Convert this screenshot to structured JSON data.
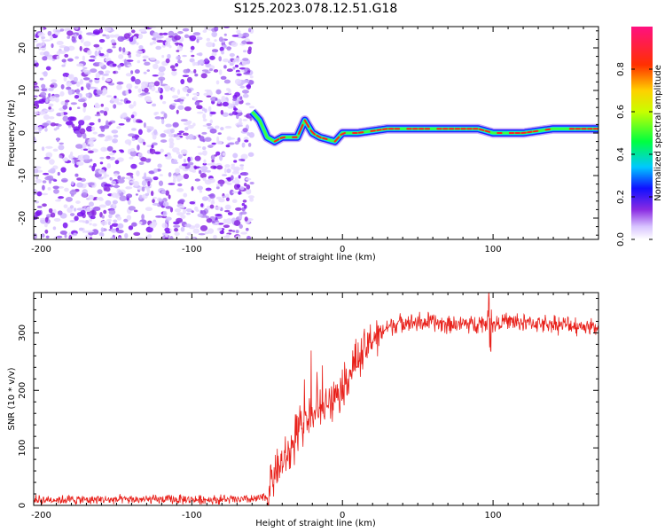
{
  "title": "S125.2023.078.12.51.G18",
  "colors": {
    "scatter": "#8a2be2",
    "trace_fill": "#2020ff",
    "trace_core": "#ff2020",
    "snr_line": "#e8201a"
  },
  "chart_data": [
    {
      "type": "heatmap",
      "xlabel": "Height of straight line (km)",
      "ylabel": "Frequency (Hz)",
      "xlim": [
        -205,
        170
      ],
      "ylim": [
        -25,
        25
      ],
      "xticks": [
        -200,
        -100,
        0,
        100
      ],
      "yticks": [
        -20,
        -10,
        0,
        10,
        20
      ],
      "noise_region_x": [
        -205,
        -60
      ],
      "trace": {
        "x": [
          -60,
          -55,
          -50,
          -45,
          -40,
          -30,
          -25,
          -20,
          -15,
          -5,
          0,
          10,
          30,
          50,
          60,
          80,
          90,
          100,
          120,
          140,
          170
        ],
        "freq_hz": [
          5,
          3,
          -1,
          -2,
          -1,
          -1,
          3,
          0,
          -1,
          -2,
          0,
          0,
          1,
          1,
          1,
          1,
          1,
          0,
          0,
          1,
          1
        ]
      },
      "colorbar": {
        "label": "Normalized spectral amplitude",
        "range": [
          0.0,
          1.0
        ],
        "ticks": [
          "0.0",
          "0.2",
          "0.4",
          "0.6",
          "0.8"
        ]
      }
    },
    {
      "type": "line",
      "xlabel": "Height of straight line (km)",
      "ylabel": "SNR (10 * v/v)",
      "xlim": [
        -205,
        170
      ],
      "ylim": [
        0,
        370
      ],
      "xticks": [
        -200,
        -100,
        0,
        100
      ],
      "yticks": [
        0,
        100,
        200,
        300
      ],
      "series": [
        {
          "x": [
            -205,
            -60,
            -50,
            -45,
            -40,
            -35,
            -30,
            -25,
            -20,
            -15,
            -10,
            -5,
            0,
            10,
            20,
            30,
            40,
            60,
            80,
            95,
            98,
            100,
            105,
            120,
            140,
            170
          ],
          "values": [
            10,
            10,
            15,
            60,
            70,
            90,
            130,
            150,
            170,
            160,
            180,
            190,
            210,
            250,
            290,
            310,
            320,
            318,
            315,
            318,
            325,
            312,
            320,
            318,
            315,
            310
          ]
        }
      ]
    }
  ]
}
